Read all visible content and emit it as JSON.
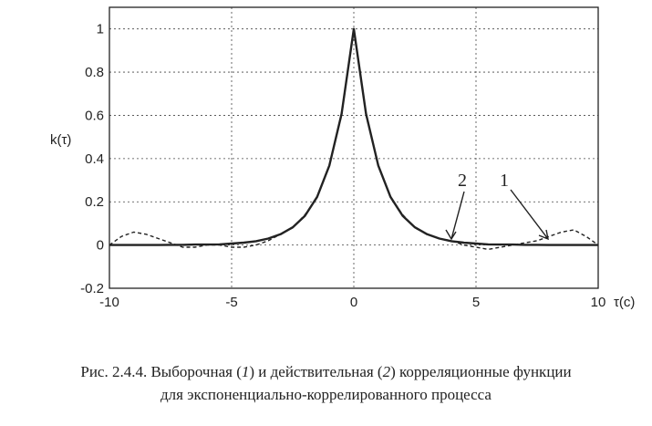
{
  "chart_data": {
    "type": "line",
    "xlabel": "τ(c)",
    "ylabel": "k(τ)",
    "xlim": [
      -10,
      10
    ],
    "ylim": [
      -0.2,
      1.1
    ],
    "x_ticks": [
      -10,
      -5,
      0,
      5,
      10
    ],
    "y_ticks": [
      -0.2,
      0,
      0.2,
      0.4,
      0.6,
      0.8,
      1
    ],
    "x_tick_labels": [
      "-10",
      "-5",
      "0",
      "5",
      "10"
    ],
    "y_tick_labels": [
      "-0.2",
      "0",
      "0.2",
      "0.4",
      "0.6",
      "0.8",
      "1"
    ],
    "grid": true,
    "series": [
      {
        "name": "1",
        "style": "dashed",
        "x": [
          -10,
          -9.5,
          -9,
          -8.5,
          -8,
          -7.5,
          -7,
          -6.5,
          -6,
          -5.5,
          -5,
          -4.5,
          -4,
          -3.5,
          -3,
          -2.5,
          -2,
          -1.5,
          -1,
          -0.5,
          0,
          0.5,
          1,
          1.5,
          2,
          2.5,
          3,
          3.5,
          4,
          4.5,
          5,
          5.5,
          6,
          6.5,
          7,
          7.5,
          8,
          8.5,
          9,
          9.5,
          10
        ],
        "values": [
          0.0,
          0.04,
          0.06,
          0.05,
          0.03,
          0.01,
          -0.01,
          -0.01,
          0.0,
          0.0,
          -0.01,
          -0.01,
          0.0,
          0.02,
          0.05,
          0.08,
          0.14,
          0.22,
          0.37,
          0.6,
          1.0,
          0.6,
          0.37,
          0.22,
          0.14,
          0.08,
          0.05,
          0.03,
          0.02,
          0.0,
          -0.01,
          -0.02,
          -0.01,
          0.0,
          0.01,
          0.02,
          0.04,
          0.06,
          0.07,
          0.04,
          0.0
        ]
      },
      {
        "name": "2",
        "style": "solid",
        "x": [
          -10,
          -9.5,
          -9,
          -8.5,
          -8,
          -7.5,
          -7,
          -6.5,
          -6,
          -5.5,
          -5,
          -4.5,
          -4,
          -3.5,
          -3,
          -2.5,
          -2,
          -1.5,
          -1,
          -0.5,
          0,
          0.5,
          1,
          1.5,
          2,
          2.5,
          3,
          3.5,
          4,
          4.5,
          5,
          5.5,
          6,
          6.5,
          7,
          7.5,
          8,
          8.5,
          9,
          9.5,
          10
        ],
        "values": [
          0.0,
          0.0,
          0.0,
          0.0,
          0.0,
          0.001,
          0.001,
          0.002,
          0.002,
          0.003,
          0.007,
          0.011,
          0.018,
          0.03,
          0.05,
          0.082,
          0.135,
          0.223,
          0.368,
          0.607,
          1.0,
          0.607,
          0.368,
          0.223,
          0.135,
          0.082,
          0.05,
          0.03,
          0.018,
          0.011,
          0.007,
          0.003,
          0.002,
          0.002,
          0.001,
          0.001,
          0.0,
          0.0,
          0.0,
          0.0,
          0.0
        ]
      }
    ]
  },
  "caption": {
    "part1": "Рис. 2.4.4. Выборочная (",
    "num1": "1",
    "part2": ") и действительная (",
    "num2": "2",
    "part3": ") корреляционные функции",
    "line2": "для экспоненциально-коррелированного процесса"
  }
}
